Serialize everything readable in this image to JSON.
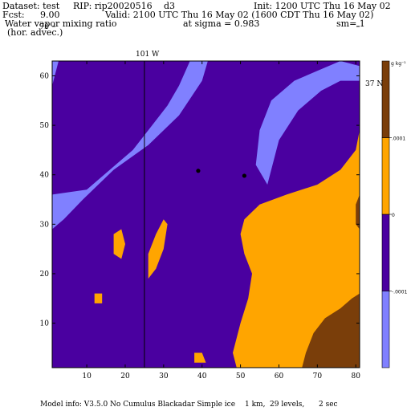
{
  "header": {
    "dataset": "Dataset: test",
    "rip": "RIP: rip20020516",
    "domain": "d3",
    "init": "Init: 1200 UTC Thu 16 May 02",
    "fcst_label": "Fcst:",
    "fcst_value": "9.00",
    "valid": "Valid: 2100 UTC Thu 16 May 02 (1600 CDT Thu 16 May 02)",
    "field_line1": "Water vapor mixing ratio",
    "field_line2": "(hor. advec.)",
    "sigma": "at sigma = 0.983",
    "sm": "sm= 1"
  },
  "footer": {
    "model_info": "Model info: V3.5.0 No Cumulus Blackadar Simple ice",
    "dx": "1 km,",
    "levels": "29 levels,",
    "dt": "2 sec"
  },
  "map_labels": {
    "meridian": "101 W",
    "parallel": "37 N"
  },
  "colorbar": {
    "units": "g kg⁻¹",
    "labels": [
      "-.0001",
      "0",
      ".0001"
    ],
    "colors": [
      "#8080ff",
      "#4a00a0",
      "#ffa500",
      "#7a3e0a"
    ]
  },
  "chart_data": {
    "type": "heatmap",
    "title": "Water vapor mixing ratio (hor. advec.)",
    "xlim": [
      1,
      81
    ],
    "ylim": [
      1,
      63
    ],
    "xticks": [
      10,
      20,
      30,
      40,
      50,
      60,
      70,
      80
    ],
    "yticks": [
      10,
      20,
      30,
      40,
      50,
      60,
      70
    ],
    "levels": [
      -0.0001,
      0,
      0.0001
    ],
    "level_colors": {
      "below_-0.0001": "#8080ff",
      "-0.0001_to_0": "#4a00a0",
      "0_to_0.0001": "#ffa500",
      "above_0.0001": "#7a3e0a"
    },
    "reference_lines": {
      "meridian_101W_x": 25,
      "parallel_37N_y": 76
    },
    "stations": [
      {
        "x": 39,
        "y": 40.8
      },
      {
        "x": 51,
        "y": 39.8
      }
    ],
    "regions": [
      {
        "class": "below_-0.0001",
        "polygon": [
          [
            1,
            29
          ],
          [
            1,
            36
          ],
          [
            10,
            37
          ],
          [
            22,
            45
          ],
          [
            27,
            50
          ],
          [
            31,
            54
          ],
          [
            34,
            58
          ],
          [
            38,
            65
          ],
          [
            42,
            72
          ],
          [
            46,
            78
          ],
          [
            52,
            82
          ],
          [
            64,
            82
          ],
          [
            58,
            80
          ],
          [
            52,
            77
          ],
          [
            47,
            73
          ],
          [
            43,
            67
          ],
          [
            40,
            59
          ],
          [
            34,
            52
          ],
          [
            26,
            46
          ],
          [
            17,
            41
          ],
          [
            9,
            35
          ],
          [
            4,
            31
          ]
        ]
      },
      {
        "class": "below_-0.0001",
        "polygon": [
          [
            1,
            58
          ],
          [
            1,
            82
          ],
          [
            10,
            82
          ],
          [
            19,
            82
          ],
          [
            18,
            79
          ],
          [
            12,
            75
          ],
          [
            6,
            70
          ],
          [
            3,
            64
          ]
        ]
      },
      {
        "class": "below_-0.0001",
        "polygon": [
          [
            38,
            82
          ],
          [
            40,
            76
          ],
          [
            46,
            72
          ],
          [
            52,
            69
          ],
          [
            58,
            66
          ],
          [
            64,
            68
          ],
          [
            72,
            72
          ],
          [
            81,
            74
          ],
          [
            81,
            82
          ]
        ]
      },
      {
        "class": "below_-0.0001",
        "polygon": [
          [
            57,
            38
          ],
          [
            60,
            47
          ],
          [
            65,
            53
          ],
          [
            71,
            57
          ],
          [
            76,
            59
          ],
          [
            81,
            59
          ],
          [
            81,
            62
          ],
          [
            76,
            63
          ],
          [
            70,
            61
          ],
          [
            64,
            59
          ],
          [
            58,
            55
          ],
          [
            55,
            49
          ],
          [
            54,
            42
          ]
        ]
      },
      {
        "class": "0_to_0.0001",
        "polygon": [
          [
            49,
            1
          ],
          [
            48,
            4
          ],
          [
            50,
            10
          ],
          [
            52,
            15
          ],
          [
            53,
            20
          ],
          [
            51,
            24
          ],
          [
            50,
            28
          ],
          [
            51,
            31
          ],
          [
            55,
            34
          ],
          [
            62,
            36
          ],
          [
            70,
            38
          ],
          [
            76,
            41
          ],
          [
            80,
            45
          ],
          [
            81,
            49
          ],
          [
            81,
            1
          ]
        ]
      },
      {
        "class": "0_to_0.0001",
        "polygon": [
          [
            26,
            19
          ],
          [
            26,
            24
          ],
          [
            28,
            28
          ],
          [
            30,
            31
          ],
          [
            31,
            30
          ],
          [
            30,
            25
          ],
          [
            28,
            21
          ]
        ]
      },
      {
        "class": "0_to_0.0001",
        "polygon": [
          [
            17,
            24
          ],
          [
            17,
            28
          ],
          [
            19,
            29
          ],
          [
            20,
            26
          ],
          [
            19,
            23
          ]
        ]
      },
      {
        "class": "0_to_0.0001",
        "polygon": [
          [
            38,
            2
          ],
          [
            38,
            4
          ],
          [
            40,
            4
          ],
          [
            41,
            2
          ]
        ]
      },
      {
        "class": "0_to_0.0001",
        "polygon": [
          [
            12,
            14
          ],
          [
            12,
            16
          ],
          [
            14,
            16
          ],
          [
            14,
            14
          ]
        ]
      },
      {
        "class": "above_0.0001",
        "polygon": [
          [
            66,
            1
          ],
          [
            67,
            4
          ],
          [
            69,
            8
          ],
          [
            72,
            11
          ],
          [
            76,
            13
          ],
          [
            79,
            15
          ],
          [
            81,
            16
          ],
          [
            81,
            1
          ]
        ]
      },
      {
        "class": "above_0.0001",
        "polygon": [
          [
            80,
            30
          ],
          [
            81,
            29
          ],
          [
            81,
            36
          ],
          [
            80,
            34
          ]
        ]
      }
    ]
  }
}
